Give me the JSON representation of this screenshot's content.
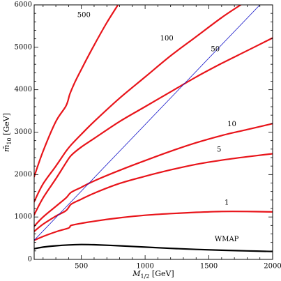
{
  "chart_data": {
    "type": "line",
    "xlabel": "M",
    "xlabel_sub": "1/2",
    "xlabel_unit": " [GeV]",
    "ylabel": "m̃",
    "ylabel_sub": "10",
    "ylabel_unit": " [GeV]",
    "xlim": [
      130,
      2000
    ],
    "ylim": [
      0,
      6000
    ],
    "xticks": [
      500,
      1000,
      1500,
      2000
    ],
    "yticks": [
      0,
      1000,
      2000,
      3000,
      4000,
      5000,
      6000
    ],
    "grid": false,
    "series": [
      {
        "name": "500",
        "color": "#e8141a",
        "label_at": [
          520,
          5750
        ],
        "x": [
          130,
          200,
          300,
          380,
          410,
          450,
          500,
          600,
          700,
          800
        ],
        "y": [
          1950,
          2550,
          3250,
          3620,
          3900,
          4180,
          4480,
          5050,
          5580,
          6060
        ]
      },
      {
        "name": "100",
        "color": "#e8141a",
        "label_at": [
          1170,
          5200
        ],
        "x": [
          130,
          200,
          300,
          380,
          420,
          500,
          600,
          800,
          1000,
          1200,
          1400,
          1600,
          1780
        ],
        "y": [
          1360,
          1780,
          2200,
          2550,
          2700,
          2950,
          3250,
          3800,
          4300,
          4800,
          5250,
          5700,
          6060
        ]
      },
      {
        "name": "50",
        "color": "#e8141a",
        "label_at": [
          1550,
          4950
        ],
        "x": [
          130,
          200,
          300,
          380,
          420,
          500,
          600,
          800,
          1000,
          1200,
          1400,
          1600,
          1800,
          2000
        ],
        "y": [
          1050,
          1450,
          1900,
          2280,
          2450,
          2650,
          2850,
          3250,
          3600,
          3950,
          4300,
          4620,
          4920,
          5220
        ]
      },
      {
        "name": "10",
        "color": "#e8141a",
        "label_at": [
          1680,
          3180
        ],
        "x": [
          130,
          200,
          300,
          380,
          420,
          500,
          600,
          800,
          1000,
          1200,
          1400,
          1600,
          1800,
          2000
        ],
        "y": [
          780,
          1000,
          1250,
          1450,
          1580,
          1700,
          1850,
          2100,
          2330,
          2550,
          2750,
          2920,
          3060,
          3200
        ]
      },
      {
        "name": "5",
        "color": "#e8141a",
        "label_at": [
          1580,
          2580
        ],
        "x": [
          130,
          200,
          300,
          380,
          420,
          500,
          600,
          800,
          1000,
          1200,
          1400,
          1600,
          1800,
          2000
        ],
        "y": [
          660,
          830,
          1020,
          1150,
          1300,
          1420,
          1560,
          1790,
          1960,
          2110,
          2240,
          2340,
          2420,
          2490
        ]
      },
      {
        "name": "1",
        "color": "#e8141a",
        "label_at": [
          1640,
          1330
        ],
        "x": [
          130,
          200,
          300,
          400,
          420,
          500,
          600,
          800,
          1000,
          1200,
          1400,
          1600,
          1800,
          2000
        ],
        "y": [
          450,
          540,
          650,
          740,
          800,
          850,
          900,
          980,
          1040,
          1080,
          1110,
          1130,
          1130,
          1120
        ]
      },
      {
        "name": "WMAP",
        "color": "#000000",
        "label_at": [
          1640,
          470
        ],
        "x": [
          130,
          200,
          300,
          400,
          500,
          600,
          800,
          1000,
          1200,
          1400,
          1600,
          1800,
          2000
        ],
        "y": [
          250,
          290,
          320,
          340,
          350,
          345,
          320,
          290,
          260,
          235,
          215,
          200,
          185
        ]
      },
      {
        "name": "",
        "color": "#1414c8",
        "x": [
          130,
          1900
        ],
        "y": [
          450,
          6000
        ]
      }
    ]
  }
}
